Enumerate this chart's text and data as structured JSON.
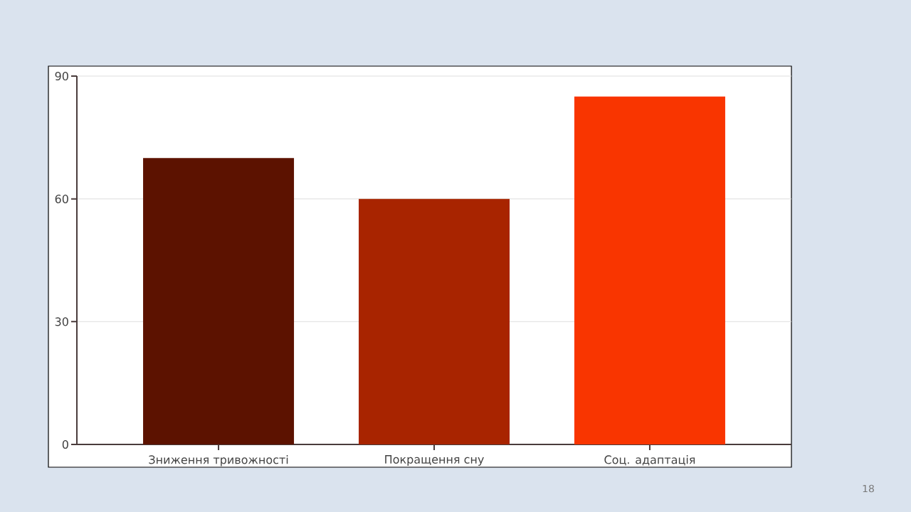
{
  "chart_data": {
    "type": "bar",
    "categories": [
      "Зниження тривожності",
      "Покращення сну",
      "Соц. адаптація"
    ],
    "values": [
      70,
      60,
      85
    ],
    "colors": [
      "#5c1200",
      "#a82400",
      "#f93500"
    ],
    "ylim": [
      0,
      90
    ],
    "yticks": [
      0,
      30,
      60,
      90
    ],
    "grid": "y",
    "annotations": [
      "18"
    ]
  }
}
